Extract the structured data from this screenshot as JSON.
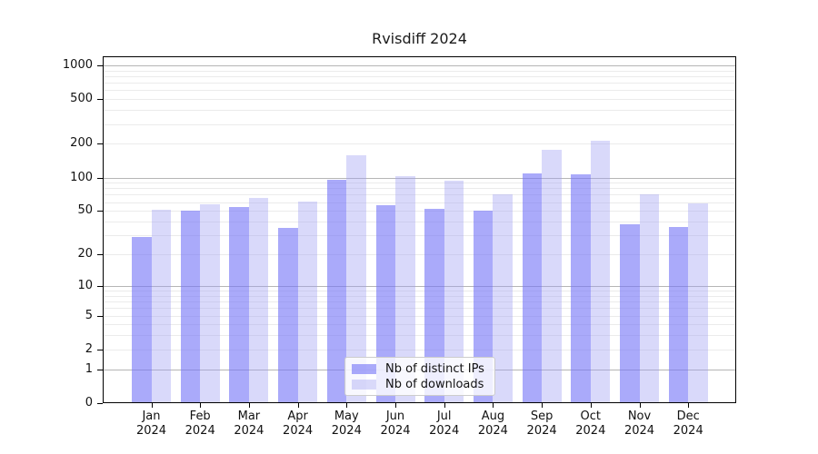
{
  "chart_data": {
    "type": "bar",
    "title": "Rvisdiff 2024",
    "categories": [
      "Jan",
      "Feb",
      "Mar",
      "Apr",
      "May",
      "Jun",
      "Jul",
      "Aug",
      "Sep",
      "Oct",
      "Nov",
      "Dec"
    ],
    "category_year": "2024",
    "series": [
      {
        "name": "Nb of distinct IPs",
        "color": "rgba(118,118,247,0.62)",
        "values": [
          29,
          50,
          54,
          35,
          96,
          56,
          52,
          50,
          108,
          107,
          38,
          36
        ]
      },
      {
        "name": "Nb of downloads",
        "color": "rgba(160,160,243,0.40)",
        "values": [
          51,
          57,
          65,
          61,
          158,
          102,
          93,
          70,
          176,
          213,
          70,
          59
        ]
      }
    ],
    "yticks": [
      0,
      1,
      2,
      5,
      10,
      20,
      50,
      100,
      200,
      500,
      1000
    ],
    "yscale": "log10(1+x)",
    "ylim": [
      0,
      1200
    ],
    "grid": "horizontal, log decades major + 2-9 minors",
    "legend_position": "bottom-center",
    "colors": {
      "bar_distinct_ips": "#aaaaf9",
      "bar_downloads": "#d9d9fa",
      "grid_major": "#b5b5b5",
      "grid_minor": "#ebebeb",
      "axis": "#000000",
      "background": "#ffffff"
    }
  }
}
